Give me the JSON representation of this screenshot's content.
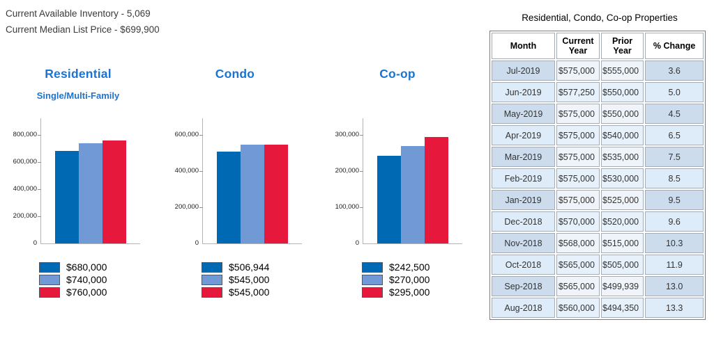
{
  "header": {
    "inventory_line": "Current Available Inventory - 5,069",
    "price_line": "Current Median List Price - $699,900"
  },
  "colors": {
    "bar_dark_blue": "#0069b4",
    "bar_light_blue": "#7099d6",
    "bar_red": "#e6193c",
    "title_blue": "#1b74d2",
    "row_shade_dark": "#ccdcec",
    "row_shade_light": "#ddecf8"
  },
  "chart_data": [
    {
      "type": "bar",
      "title": "Residential",
      "subtitle": "Single/Multi-Family",
      "values": [
        680000,
        740000,
        760000
      ],
      "legend": [
        "$680,000",
        "$740,000",
        "$760,000"
      ],
      "bar_colors": [
        "#0069b4",
        "#7099d6",
        "#e6193c"
      ],
      "yticks": [
        0,
        200000,
        400000,
        600000,
        800000
      ],
      "ytick_labels": [
        "0",
        "200,000",
        "400,000",
        "600,000",
        "800,000"
      ],
      "ylim": [
        0,
        920000
      ],
      "grid": false,
      "legend_position": "bottom"
    },
    {
      "type": "bar",
      "title": "Condo",
      "subtitle": "",
      "values": [
        506944,
        545000,
        545000
      ],
      "legend": [
        "$506,944",
        "$545,000",
        "$545,000"
      ],
      "bar_colors": [
        "#0069b4",
        "#7099d6",
        "#e6193c"
      ],
      "yticks": [
        0,
        200000,
        400000,
        600000
      ],
      "ytick_labels": [
        "0",
        "200,000",
        "400,000",
        "600,000"
      ],
      "ylim": [
        0,
        690000
      ],
      "grid": false,
      "legend_position": "bottom"
    },
    {
      "type": "bar",
      "title": "Co-op",
      "subtitle": "",
      "values": [
        242500,
        270000,
        295000
      ],
      "legend": [
        "$242,500",
        "$270,000",
        "$295,000"
      ],
      "bar_colors": [
        "#0069b4",
        "#7099d6",
        "#e6193c"
      ],
      "yticks": [
        0,
        100000,
        200000,
        300000
      ],
      "ytick_labels": [
        "0",
        "100,000",
        "200,000",
        "300,000"
      ],
      "ylim": [
        0,
        345000
      ],
      "grid": false,
      "legend_position": "bottom"
    }
  ],
  "table": {
    "title": "Residential, Condo, Co-op Properties",
    "columns": [
      "Month",
      "Current Year",
      "Prior Year",
      "% Change"
    ],
    "rows": [
      {
        "month": "Jul-2019",
        "current": "$575,000",
        "prior": "$555,000",
        "change": "3.6"
      },
      {
        "month": "Jun-2019",
        "current": "$577,250",
        "prior": "$550,000",
        "change": "5.0"
      },
      {
        "month": "May-2019",
        "current": "$575,000",
        "prior": "$550,000",
        "change": "4.5"
      },
      {
        "month": "Apr-2019",
        "current": "$575,000",
        "prior": "$540,000",
        "change": "6.5"
      },
      {
        "month": "Mar-2019",
        "current": "$575,000",
        "prior": "$535,000",
        "change": "7.5"
      },
      {
        "month": "Feb-2019",
        "current": "$575,000",
        "prior": "$530,000",
        "change": "8.5"
      },
      {
        "month": "Jan-2019",
        "current": "$575,000",
        "prior": "$525,000",
        "change": "9.5"
      },
      {
        "month": "Dec-2018",
        "current": "$570,000",
        "prior": "$520,000",
        "change": "9.6"
      },
      {
        "month": "Nov-2018",
        "current": "$568,000",
        "prior": "$515,000",
        "change": "10.3"
      },
      {
        "month": "Oct-2018",
        "current": "$565,000",
        "prior": "$505,000",
        "change": "11.9"
      },
      {
        "month": "Sep-2018",
        "current": "$565,000",
        "prior": "$499,939",
        "change": "13.0"
      },
      {
        "month": "Aug-2018",
        "current": "$560,000",
        "prior": "$494,350",
        "change": "13.3"
      }
    ]
  }
}
